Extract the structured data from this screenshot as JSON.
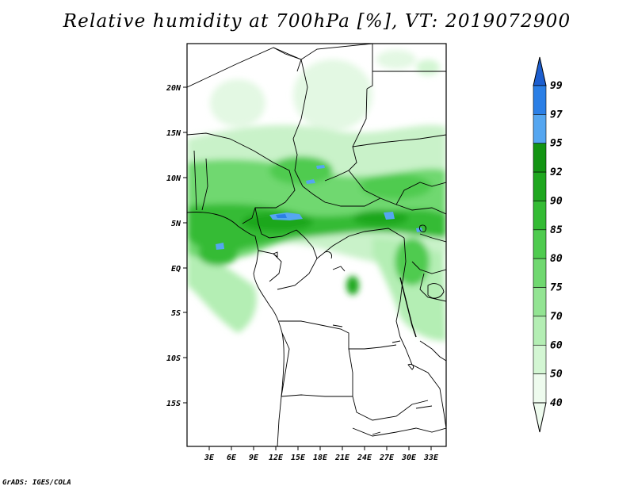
{
  "title": "Relative humidity at 700hPa [%], VT: 2019072900",
  "credit": "GrADS: IGES/COLA",
  "map": {
    "lon_range": [
      0,
      36
    ],
    "lat_range": [
      -20,
      25
    ],
    "lon_ticks": [
      "3E",
      "6E",
      "9E",
      "12E",
      "15E",
      "18E",
      "21E",
      "24E",
      "27E",
      "30E",
      "33E"
    ],
    "lat_ticks": [
      "20N",
      "15N",
      "10N",
      "5N",
      "EQ",
      "5S",
      "10S",
      "15S"
    ]
  },
  "colorbar": {
    "levels": [
      "99",
      "97",
      "95",
      "92",
      "90",
      "85",
      "80",
      "75",
      "70",
      "60",
      "50",
      "40"
    ],
    "colors": [
      "#1c5ecf",
      "#2b7fe6",
      "#55a6f0",
      "#139413",
      "#1fa71f",
      "#34bb34",
      "#4fcb4f",
      "#70d870",
      "#93e493",
      "#b4eeb4",
      "#d3f6d3",
      "#eefbee"
    ]
  }
}
